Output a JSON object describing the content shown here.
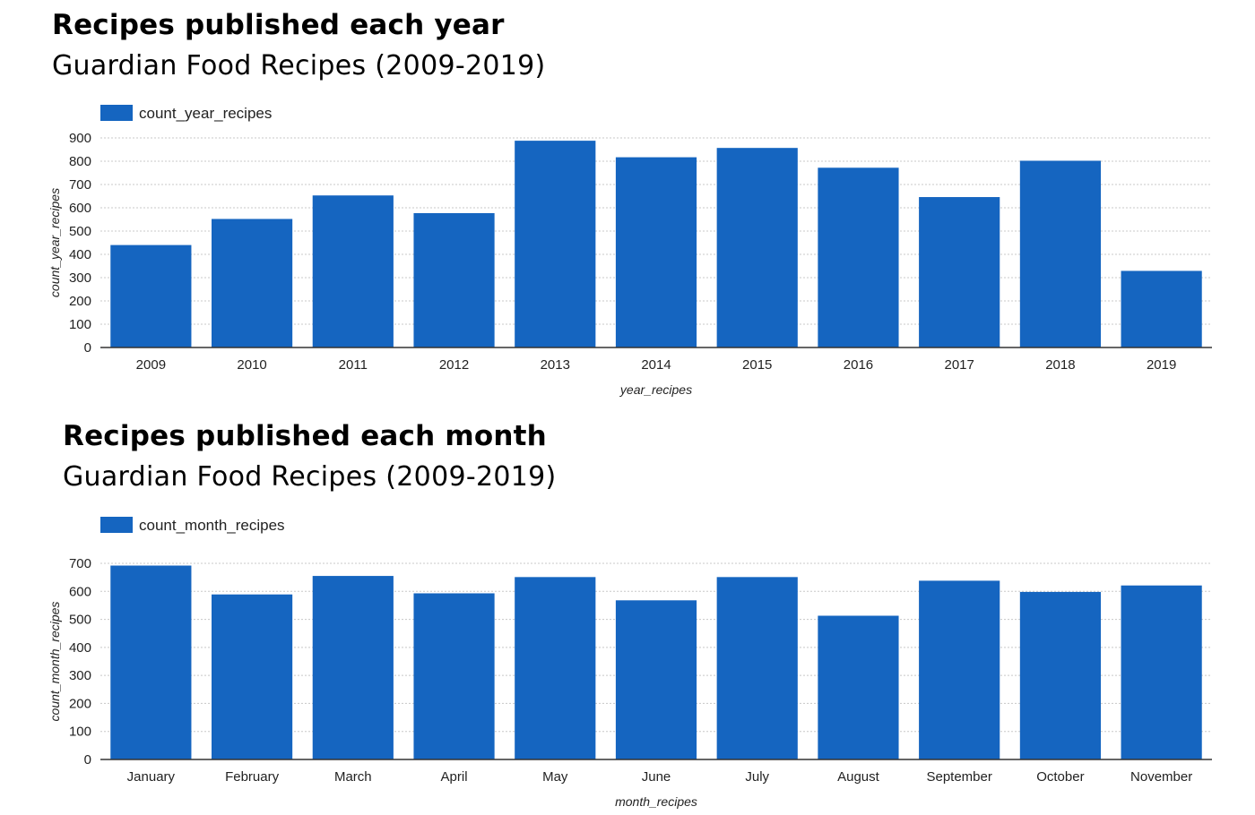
{
  "accent_color": "#1565c0",
  "chart_data": [
    {
      "type": "bar",
      "title": "Recipes published each year",
      "subtitle": "Guardian Food Recipes (2009-2019)",
      "legend": "count_year_recipes",
      "legend_position": "top-left",
      "xlabel": "year_recipes",
      "ylabel": "count_year_recipes",
      "categories": [
        "2009",
        "2010",
        "2011",
        "2012",
        "2013",
        "2014",
        "2015",
        "2016",
        "2017",
        "2018",
        "2019"
      ],
      "values": [
        440,
        552,
        653,
        577,
        888,
        817,
        857,
        772,
        646,
        802,
        329
      ],
      "ylim": [
        0,
        900
      ],
      "yticks": [
        0,
        100,
        200,
        300,
        400,
        500,
        600,
        700,
        800,
        900
      ],
      "grid": true,
      "color": "#1565c0"
    },
    {
      "type": "bar",
      "title": "Recipes published each month",
      "subtitle": "Guardian Food Recipes (2009-2019)",
      "legend": "count_month_recipes",
      "legend_position": "top-left",
      "xlabel": "month_recipes",
      "ylabel": "count_month_recipes",
      "categories": [
        "January",
        "February",
        "March",
        "April",
        "May",
        "June",
        "July",
        "August",
        "September",
        "October",
        "November"
      ],
      "values": [
        692,
        589,
        655,
        593,
        651,
        568,
        651,
        513,
        638,
        598,
        621
      ],
      "ylim": [
        0,
        700
      ],
      "yticks": [
        0,
        100,
        200,
        300,
        400,
        500,
        600,
        700
      ],
      "grid": true,
      "color": "#1565c0"
    }
  ]
}
